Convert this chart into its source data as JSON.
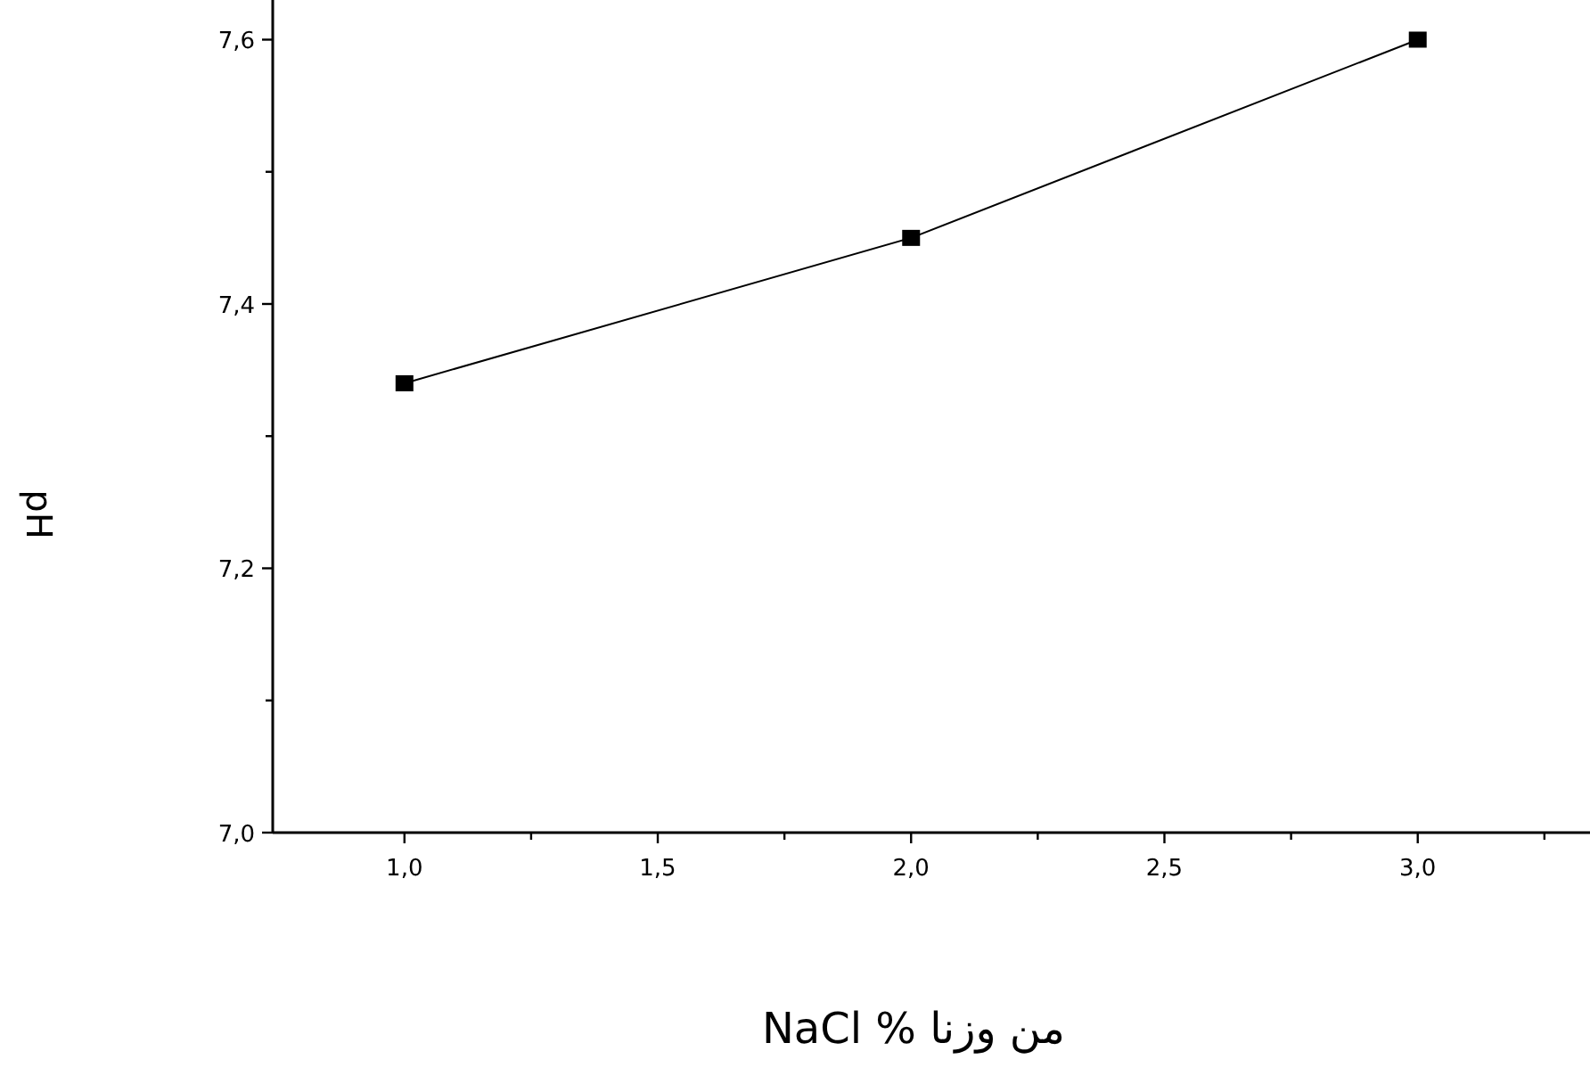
{
  "chart_data": {
    "type": "line",
    "xlabel": "NaCl % من وزنا",
    "ylabel": "pH",
    "x": [
      1.0,
      2.0,
      3.0
    ],
    "series": [
      {
        "color": "#000000",
        "values": [
          7.34,
          7.45,
          7.6
        ]
      }
    ],
    "xlim": [
      0.74,
      3.34
    ],
    "ylim": [
      7.0,
      7.63
    ],
    "xticks": [
      {
        "value": 1.0,
        "label": "1,0"
      },
      {
        "value": 1.25,
        "label": null
      },
      {
        "value": 1.5,
        "label": "1,5"
      },
      {
        "value": 1.75,
        "label": null
      },
      {
        "value": 2.0,
        "label": "2,0"
      },
      {
        "value": 2.25,
        "label": null
      },
      {
        "value": 2.5,
        "label": "2,5"
      },
      {
        "value": 2.75,
        "label": null
      },
      {
        "value": 3.0,
        "label": "3,0"
      },
      {
        "value": 3.25,
        "label": null
      }
    ],
    "yticks": [
      {
        "value": 7.0,
        "label": "7,0"
      },
      {
        "value": 7.1,
        "label": null
      },
      {
        "value": 7.2,
        "label": "7,2"
      },
      {
        "value": 7.3,
        "label": null
      },
      {
        "value": 7.4,
        "label": "7,4"
      },
      {
        "value": 7.5,
        "label": null
      },
      {
        "value": 7.6,
        "label": "7,6"
      }
    ],
    "marker": "square",
    "line_style": "solid",
    "grid": false
  }
}
